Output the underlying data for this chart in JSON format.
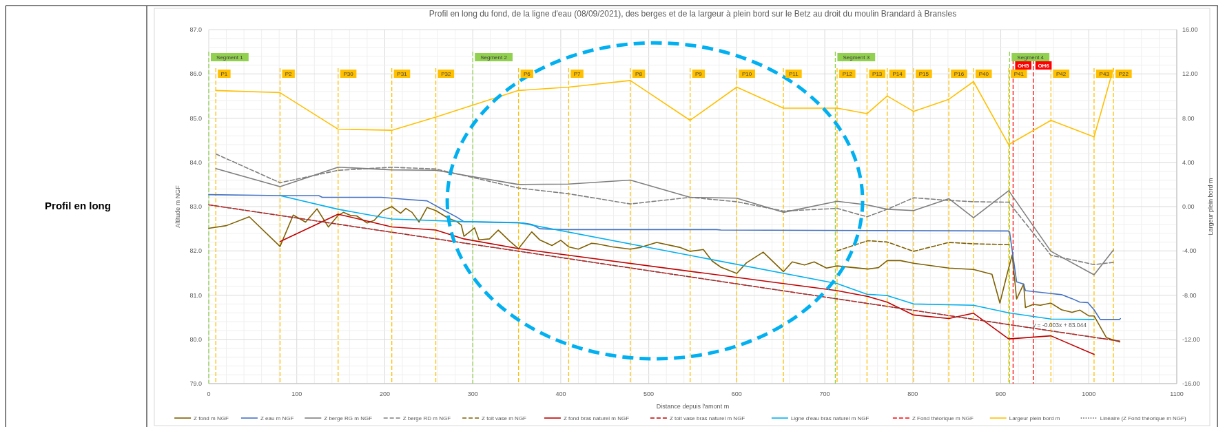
{
  "chart_data": {
    "type": "line",
    "title": "Profil en long du fond, de la ligne d'eau (08/09/2021), des berges et de la largeur à plein bord sur le Betz au droit du moulin Brandard à Bransles",
    "xlabel": "Distance depuis l'amont m",
    "ylabel": "Altitude m NGF",
    "y2label": "Largeur plein bord m",
    "xlim": [
      0,
      1100
    ],
    "xticks": [
      0,
      100,
      200,
      300,
      400,
      500,
      600,
      700,
      800,
      900,
      1000,
      1100
    ],
    "ylim": [
      79,
      87
    ],
    "yticks": [
      {
        "value": 79,
        "label": "79.0"
      },
      {
        "value": 80,
        "label": "80.0"
      },
      {
        "value": 81,
        "label": "81.0"
      },
      {
        "value": 82,
        "label": "82.0"
      },
      {
        "value": 83,
        "label": "83.0"
      },
      {
        "value": 84,
        "label": "84.0"
      },
      {
        "value": 85,
        "label": "85.0"
      },
      {
        "value": 86,
        "label": "86.0"
      },
      {
        "value": 87,
        "label": "87.0"
      }
    ],
    "y2lim": [
      -16,
      16
    ],
    "y2ticks": [
      {
        "value": -16,
        "label": "-16.00"
      },
      {
        "value": -12,
        "label": "-12.00"
      },
      {
        "value": -8,
        "label": "-8.00"
      },
      {
        "value": -4,
        "label": "-4.00"
      },
      {
        "value": 0,
        "label": "0.00"
      },
      {
        "value": 4,
        "label": "4.00"
      },
      {
        "value": 8,
        "label": "8.00"
      },
      {
        "value": 12,
        "label": "12.00"
      },
      {
        "value": 16,
        "label": "16.00"
      }
    ],
    "grid": true,
    "legend": "bottom",
    "series": [
      {
        "name": "Z fond m NGF",
        "color": "#7f6000",
        "x": [
          0,
          20,
          46,
          81,
          96,
          110,
          123,
          136,
          147,
          153,
          161,
          168,
          180,
          188,
          198,
          208,
          218,
          224,
          231,
          239,
          248,
          258,
          272,
          282,
          287,
          290,
          302,
          307,
          319,
          329,
          342,
          352,
          367,
          376,
          390,
          400,
          409,
          420,
          435,
          441,
          459,
          479,
          491,
          509,
          535,
          547,
          562,
          572,
          582,
          600,
          611,
          630,
          653,
          663,
          677,
          688,
          702,
          714,
          749,
          761,
          771,
          786,
          801,
          841,
          869,
          890,
          899,
          907,
          913,
          918,
          926,
          928,
          937,
          945,
          957,
          969,
          981,
          990,
          1000,
          1006,
          1020,
          1035
        ],
        "values": [
          82.51,
          82.57,
          82.77,
          82.1,
          82.81,
          82.65,
          82.95,
          82.54,
          82.8,
          82.87,
          82.8,
          82.79,
          82.63,
          82.69,
          82.91,
          83.0,
          82.85,
          82.96,
          82.87,
          82.65,
          82.98,
          82.91,
          82.74,
          82.66,
          82.58,
          82.33,
          82.52,
          82.25,
          82.27,
          82.47,
          82.22,
          82.05,
          82.43,
          82.25,
          82.12,
          82.24,
          82.09,
          82.04,
          82.17,
          82.16,
          82.09,
          82.04,
          82.08,
          82.19,
          82.08,
          81.99,
          82.03,
          81.77,
          81.63,
          81.49,
          81.73,
          81.97,
          81.53,
          81.75,
          81.68,
          81.75,
          81.61,
          81.66,
          81.59,
          81.62,
          81.78,
          81.78,
          81.72,
          81.61,
          81.58,
          81.47,
          80.82,
          81.46,
          81.91,
          80.91,
          81.25,
          80.72,
          80.79,
          80.77,
          80.82,
          80.67,
          80.61,
          80.66,
          80.53,
          80.53,
          80.04,
          79.94
        ]
      },
      {
        "name": "Z eau m NGF",
        "color": "#4472c4",
        "x": [
          0,
          81,
          125,
          129,
          196,
          227,
          248,
          269,
          282,
          290,
          357,
          367,
          376,
          400,
          577,
          582,
          749,
          908,
          910,
          918,
          926,
          928,
          969,
          981,
          990,
          999,
          1006,
          1013,
          1035,
          1036
        ],
        "values": [
          83.27,
          83.25,
          83.25,
          83.21,
          83.21,
          83.16,
          83.13,
          82.9,
          82.76,
          82.66,
          82.63,
          82.6,
          82.5,
          82.48,
          82.48,
          82.47,
          82.46,
          82.45,
          82.43,
          81.3,
          81.25,
          81.1,
          81.01,
          80.92,
          80.84,
          80.83,
          80.67,
          80.45,
          80.45,
          80.47
        ]
      },
      {
        "name": "Z berge RG m NGF",
        "color": "#7f7f7f",
        "line_style": "solid",
        "x": [
          8,
          81,
          147,
          208,
          258,
          352,
          409,
          479,
          547,
          600,
          653,
          714,
          748,
          771,
          801,
          841,
          869,
          909,
          957,
          1006,
          1028
        ],
        "values": [
          83.86,
          83.45,
          83.89,
          83.83,
          83.82,
          83.5,
          83.51,
          83.6,
          83.21,
          83.19,
          82.87,
          83.12,
          83.04,
          82.94,
          82.91,
          83.18,
          82.75,
          83.36,
          81.99,
          81.46,
          82.02
        ]
      },
      {
        "name": "Z berge RD m NGF",
        "color": "#7f7f7f",
        "line_style": "dashed",
        "x": [
          8,
          81,
          147,
          208,
          258,
          352,
          409,
          479,
          547,
          600,
          653,
          714,
          748,
          771,
          801,
          841,
          869,
          909,
          957,
          1006,
          1028
        ],
        "values": [
          84.19,
          83.54,
          83.82,
          83.89,
          83.85,
          83.42,
          83.29,
          83.06,
          83.21,
          83.11,
          82.9,
          82.96,
          82.77,
          82.94,
          83.2,
          83.14,
          83.11,
          83.1,
          81.9,
          81.69,
          81.74
        ]
      },
      {
        "name": "Z toit vase m NGF",
        "color": "#7f6000",
        "line_style": "dashed",
        "x": [
          714,
          749,
          771,
          801,
          841,
          869,
          909
        ],
        "values": [
          82.0,
          82.23,
          82.2,
          81.99,
          82.19,
          82.16,
          82.14
        ]
      },
      {
        "name": "Z fond bras naturel m NGF",
        "color": "#c00000",
        "line_style": "solid",
        "x": [
          81,
          147,
          208,
          258,
          290,
          352,
          714,
          749,
          771,
          801,
          841,
          869,
          909,
          957,
          1006
        ],
        "values": [
          82.21,
          82.83,
          82.54,
          82.47,
          82.27,
          82.05,
          81.1,
          80.97,
          80.84,
          80.55,
          80.47,
          80.59,
          80.01,
          80.08,
          79.66
        ]
      },
      {
        "name": "Z toit vase bras naturel m NGF",
        "color": "#c00000",
        "line_style": "dashed"
      },
      {
        "name": "Ligne d'eau bras naturel m NGF",
        "color": "#00b0f0",
        "x": [
          81,
          147,
          208,
          290,
          352,
          714,
          748,
          771,
          801,
          869,
          909,
          957,
          1006
        ],
        "values": [
          83.25,
          82.94,
          82.72,
          82.66,
          82.64,
          81.26,
          81.02,
          80.99,
          80.8,
          80.77,
          80.6,
          80.46,
          80.45
        ]
      },
      {
        "name": "Z Fond théorique m NGF",
        "color": "#ff0000",
        "line_style": "dashed",
        "x": [
          0,
          1035
        ],
        "values": [
          83.04,
          79.96
        ]
      },
      {
        "name": "Largeur plein bord m",
        "color": "#ffc000",
        "axis": "y2",
        "x": [
          8,
          81,
          147,
          208,
          258,
          352,
          409,
          479,
          547,
          600,
          653,
          714,
          748,
          771,
          801,
          841,
          869,
          909,
          957,
          1006,
          1028
        ],
        "values": [
          10.5,
          10.3,
          7.0,
          6.9,
          8.1,
          10.5,
          10.8,
          11.4,
          7.8,
          10.8,
          8.9,
          8.9,
          8.4,
          10.0,
          8.6,
          9.7,
          11.3,
          5.6,
          7.8,
          6.3,
          12.5
        ]
      },
      {
        "name": "Linéaire (Z Fond théorique m NGF)",
        "color": "#595959",
        "line_style": "dotted",
        "x": [
          0,
          1035
        ],
        "values": [
          83.04,
          79.96
        ]
      }
    ],
    "ref_lines": [
      {
        "axis": "x",
        "value": 0,
        "label": "Segment 1",
        "color": "#92d050",
        "line_style": "dashed"
      },
      {
        "axis": "x",
        "value": 300,
        "label": "Segment 2",
        "color": "#92d050",
        "line_style": "dashed"
      },
      {
        "axis": "x",
        "value": 712,
        "label": "Segment 3",
        "color": "#92d050",
        "line_style": "dashed"
      },
      {
        "axis": "x",
        "value": 910,
        "label": "Segment 4",
        "color": "#92d050",
        "line_style": "dashed"
      },
      {
        "axis": "x",
        "value": 8,
        "label": "P1",
        "color": "#ffc000",
        "line_style": "dashed"
      },
      {
        "axis": "x",
        "value": 81,
        "label": "P2",
        "color": "#ffc000",
        "line_style": "dashed"
      },
      {
        "axis": "x",
        "value": 147,
        "label": "P30",
        "color": "#ffc000",
        "line_style": "dashed"
      },
      {
        "axis": "x",
        "value": 208,
        "label": "P31",
        "color": "#ffc000",
        "line_style": "dashed"
      },
      {
        "axis": "x",
        "value": 258,
        "label": "P32",
        "color": "#ffc000",
        "line_style": "dashed"
      },
      {
        "axis": "x",
        "value": 352,
        "label": "P6",
        "color": "#ffc000",
        "line_style": "dashed"
      },
      {
        "axis": "x",
        "value": 409,
        "label": "P7",
        "color": "#ffc000",
        "line_style": "dashed"
      },
      {
        "axis": "x",
        "value": 479,
        "label": "P8",
        "color": "#ffc000",
        "line_style": "dashed"
      },
      {
        "axis": "x",
        "value": 547,
        "label": "P9",
        "color": "#ffc000",
        "line_style": "dashed"
      },
      {
        "axis": "x",
        "value": 600,
        "label": "P10",
        "color": "#ffc000",
        "line_style": "dashed"
      },
      {
        "axis": "x",
        "value": 653,
        "label": "P11",
        "color": "#ffc000",
        "line_style": "dashed"
      },
      {
        "axis": "x",
        "value": 714,
        "label": "P12",
        "color": "#ffc000",
        "line_style": "dashed"
      },
      {
        "axis": "x",
        "value": 748,
        "label": "P13",
        "color": "#ffc000",
        "line_style": "dashed"
      },
      {
        "axis": "x",
        "value": 771,
        "label": "P14",
        "color": "#ffc000",
        "line_style": "dashed"
      },
      {
        "axis": "x",
        "value": 801,
        "label": "P15",
        "color": "#ffc000",
        "line_style": "dashed"
      },
      {
        "axis": "x",
        "value": 841,
        "label": "P16",
        "color": "#ffc000",
        "line_style": "dashed"
      },
      {
        "axis": "x",
        "value": 869,
        "label": "P40",
        "color": "#ffc000",
        "line_style": "dashed"
      },
      {
        "axis": "x",
        "value": 909,
        "label": "P41",
        "color": "#ffc000",
        "line_style": "dashed"
      },
      {
        "axis": "x",
        "value": 957,
        "label": "P42",
        "color": "#ffc000",
        "line_style": "dashed"
      },
      {
        "axis": "x",
        "value": 1006,
        "label": "P43",
        "color": "#ffc000",
        "line_style": "dashed"
      },
      {
        "axis": "x",
        "value": 1028,
        "label": "P22",
        "color": "#ffc000",
        "line_style": "dashed"
      },
      {
        "axis": "x",
        "value": 914,
        "label": "OH5",
        "color": "#ff0000",
        "line_style": "dashed"
      },
      {
        "axis": "x",
        "value": 937,
        "label": "OH6",
        "color": "#ff0000",
        "line_style": "dashed"
      }
    ],
    "annotations": [
      "Profil en long",
      "y = -0.003x + 83.044"
    ]
  }
}
